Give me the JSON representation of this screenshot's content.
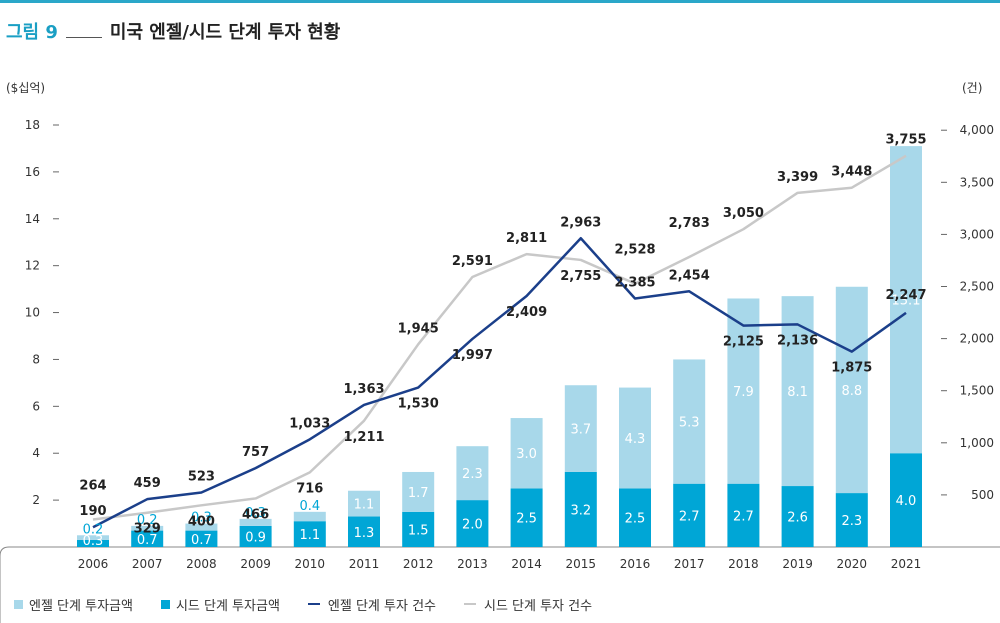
{
  "figure": {
    "label": "그림 9",
    "title": "미국 엔젤/시드 단계 투자 현황"
  },
  "colors": {
    "angel_bar": "#a8d8ea",
    "seed_bar": "#00a6d6",
    "angel_line": "#1b3f8a",
    "seed_line": "#c8c8c8",
    "accent": "#2aa7c9"
  },
  "chart_data": {
    "type": "bar",
    "stacked": true,
    "categories": [
      "2006",
      "2007",
      "2008",
      "2009",
      "2010",
      "2011",
      "2012",
      "2013",
      "2014",
      "2015",
      "2016",
      "2017",
      "2018",
      "2019",
      "2020",
      "2021"
    ],
    "y_left": {
      "unit_label": "($십억)",
      "ylim": [
        0,
        18
      ],
      "ticks": [
        "2",
        "4",
        "6",
        "8",
        "10",
        "12",
        "14",
        "16",
        "18"
      ]
    },
    "y_right": {
      "unit_label": "(건)",
      "ylim": [
        0,
        4050
      ],
      "ticks": [
        "500",
        "1,000",
        "1,500",
        "2,000",
        "2,500",
        "3,000",
        "3,500",
        "4,000"
      ]
    },
    "grid": false,
    "legend_position": "bottom-left",
    "series": [
      {
        "name": "엔젤 단계 투자금액",
        "type": "bar",
        "axis": "left",
        "values": [
          0.2,
          0.2,
          0.3,
          0.3,
          0.4,
          1.1,
          1.7,
          2.3,
          3.0,
          3.7,
          4.3,
          5.3,
          7.9,
          8.1,
          8.8,
          13.1
        ],
        "labels": [
          "0.2",
          "0.2",
          "0.3",
          "0.3",
          "0.4",
          "1.1",
          "1.7",
          "2.3",
          "3.0",
          "3.7",
          "4.3",
          "5.3",
          "7.9",
          "8.1",
          "8.8",
          "13.1"
        ]
      },
      {
        "name": "시드 단계 투자금액",
        "type": "bar",
        "axis": "left",
        "values": [
          0.3,
          0.7,
          0.7,
          0.9,
          1.1,
          1.3,
          1.5,
          2.0,
          2.5,
          3.2,
          2.5,
          2.7,
          2.7,
          2.6,
          2.3,
          4.0
        ],
        "labels": [
          "0.3",
          "0.7",
          "0.7",
          "0.9",
          "1.1",
          "1.3",
          "1.5",
          "2.0",
          "2.5",
          "3.2",
          "2.5",
          "2.7",
          "2.7",
          "2.6",
          "2.3",
          "4.0"
        ]
      },
      {
        "name": "엔젤 단계 투자 건수",
        "type": "line",
        "axis": "right",
        "values": [
          190,
          459,
          523,
          757,
          1033,
          1363,
          1530,
          1997,
          2409,
          2963,
          2385,
          2454,
          2125,
          2136,
          1875,
          2247
        ],
        "labels": [
          "190",
          "459",
          "523",
          "757",
          "1,033",
          "1,363",
          "1,530",
          "1,997",
          "2,409",
          "2,963",
          "2,385",
          "2,454",
          "2,125",
          "2,136",
          "1,875",
          "2,247"
        ]
      },
      {
        "name": "시드 단계 투자 건수",
        "type": "line",
        "axis": "right",
        "values": [
          264,
          329,
          400,
          466,
          716,
          1211,
          1945,
          2591,
          2811,
          2755,
          2528,
          2783,
          3050,
          3399,
          3448,
          3755
        ],
        "labels": [
          "264",
          "329",
          "400",
          "466",
          "716",
          "1,211",
          "1,945",
          "2,591",
          "2,811",
          "2,755",
          "2,528",
          "2,783",
          "3,050",
          "3,399",
          "3,448",
          "3,755"
        ]
      }
    ]
  }
}
